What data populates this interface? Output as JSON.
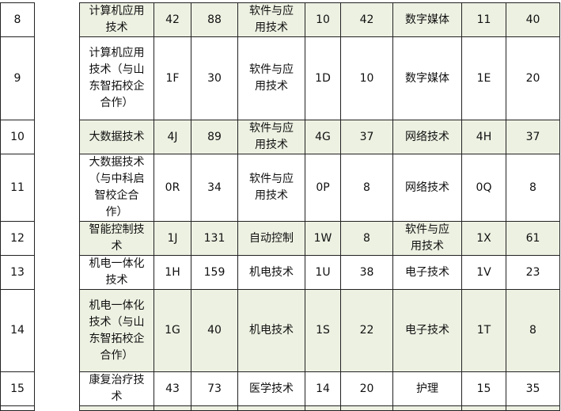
{
  "rows": [
    {
      "no": "8",
      "major": "计算机应用技术",
      "code": "42",
      "plan": "88",
      "m1": "软件与应用技术",
      "c1": "10",
      "p1": "42",
      "m2": "数字媒体",
      "c2": "11",
      "p2": "40",
      "shaded": true
    },
    {
      "no": "9",
      "major": "计算机应用技术（与山东智拓校企合作）",
      "code": "1F",
      "plan": "30",
      "m1": "软件与应用技术",
      "c1": "1D",
      "p1": "10",
      "m2": "数字媒体",
      "c2": "1E",
      "p2": "20",
      "shaded": false
    },
    {
      "no": "10",
      "major": "大数据技术",
      "code": "4J",
      "plan": "89",
      "m1": "软件与应用技术",
      "c1": "4G",
      "p1": "37",
      "m2": "网络技术",
      "c2": "4H",
      "p2": "37",
      "shaded": true
    },
    {
      "no": "11",
      "major": "大数据技术（与中科启智校企合作）",
      "code": "0R",
      "plan": "34",
      "m1": "软件与应用技术",
      "c1": "0P",
      "p1": "8",
      "m2": "网络技术",
      "c2": "0Q",
      "p2": "8",
      "shaded": false
    },
    {
      "no": "12",
      "major": "智能控制技术",
      "code": "1J",
      "plan": "131",
      "m1": "自动控制",
      "c1": "1W",
      "p1": "8",
      "m2": "软件与应用技术",
      "c2": "1X",
      "p2": "61",
      "shaded": true
    },
    {
      "no": "13",
      "major": "机电一体化技术",
      "code": "1H",
      "plan": "159",
      "m1": "机电技术",
      "c1": "1U",
      "p1": "38",
      "m2": "电子技术",
      "c2": "1V",
      "p2": "23",
      "shaded": false
    },
    {
      "no": "14",
      "major": "机电一体化技术（与山东智拓校企合作）",
      "code": "1G",
      "plan": "40",
      "m1": "机电技术",
      "c1": "1S",
      "p1": "22",
      "m2": "电子技术",
      "c2": "1T",
      "p2": "8",
      "shaded": true
    },
    {
      "no": "15",
      "major": "康复治疗技术",
      "code": "43",
      "plan": "73",
      "m1": "医学技术",
      "c1": "14",
      "p1": "20",
      "m2": "护理",
      "c2": "15",
      "p2": "35",
      "shaded": false
    }
  ],
  "colors": {
    "shade": "#edf1e2",
    "border": "#222222"
  }
}
